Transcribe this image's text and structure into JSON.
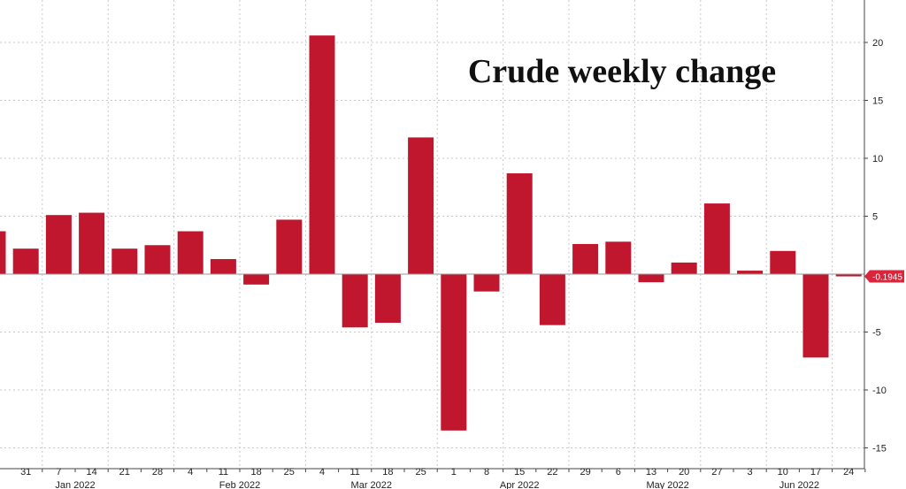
{
  "chart_data": {
    "type": "bar",
    "title": "Crude weekly change",
    "xlabel": "",
    "ylabel": "",
    "ylim": [
      -16,
      24
    ],
    "y_ticks": [
      20,
      15,
      10,
      5,
      -5,
      -10,
      -15
    ],
    "grid": true,
    "axis_side": "right",
    "bar_color": "#c0172f",
    "last_value_color": "#d9263c",
    "last_value_label": "-0.1945",
    "categories": [
      "24",
      "31",
      "7",
      "14",
      "21",
      "28",
      "4",
      "11",
      "18",
      "25",
      "4",
      "11",
      "18",
      "25",
      "1",
      "8",
      "15",
      "22",
      "29",
      "6",
      "13",
      "20",
      "27",
      "3",
      "10",
      "17",
      "24"
    ],
    "values": [
      3.7,
      2.2,
      5.1,
      5.3,
      2.2,
      2.5,
      3.7,
      1.3,
      -0.9,
      4.7,
      20.6,
      -4.6,
      -4.2,
      11.8,
      -13.5,
      -1.5,
      8.7,
      -4.4,
      2.6,
      2.8,
      -0.7,
      1.0,
      6.1,
      0.3,
      2.0,
      -7.2,
      -0.1945
    ],
    "months": [
      {
        "label": "Jan 2022"
      },
      {
        "label": "Feb 2022"
      },
      {
        "label": "Mar 2022"
      },
      {
        "label": "Apr 2022"
      },
      {
        "label": "May 2022"
      },
      {
        "label": "Jun 2022"
      }
    ]
  }
}
